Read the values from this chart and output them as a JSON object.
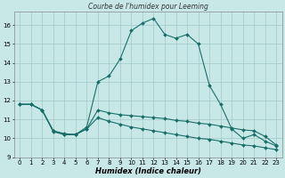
{
  "title": "Courbe de l'humidex pour Leeming",
  "xlabel": "Humidex (Indice chaleur)",
  "bg_color": "#c8e8e8",
  "grid_color": "#a0c8c8",
  "line_color": "#1a6e6a",
  "xlim": [
    -0.5,
    23.5
  ],
  "ylim": [
    9.0,
    16.7
  ],
  "yticks": [
    9,
    10,
    11,
    12,
    13,
    14,
    15,
    16
  ],
  "xticks": [
    0,
    1,
    2,
    3,
    4,
    5,
    6,
    7,
    8,
    9,
    10,
    11,
    12,
    13,
    14,
    15,
    16,
    17,
    18,
    19,
    20,
    21,
    22,
    23
  ],
  "series1_x": [
    0,
    1,
    2,
    3,
    4,
    5,
    6,
    7,
    8,
    9,
    10,
    11,
    12,
    13,
    14,
    15,
    16,
    17,
    18,
    19,
    20,
    21,
    22,
    23
  ],
  "series1_y": [
    11.8,
    11.8,
    11.5,
    10.4,
    10.2,
    10.2,
    10.6,
    13.0,
    13.3,
    14.2,
    15.7,
    16.1,
    16.35,
    15.5,
    15.3,
    15.5,
    15.0,
    12.8,
    11.8,
    10.5,
    10.0,
    10.2,
    9.85,
    9.6
  ],
  "series2_x": [
    0,
    1,
    2,
    3,
    4,
    5,
    6,
    7,
    8,
    9,
    10,
    11,
    12,
    13,
    14,
    15,
    16,
    17,
    18,
    19,
    20,
    21,
    22,
    23
  ],
  "series2_y": [
    11.8,
    11.8,
    11.5,
    10.4,
    10.25,
    10.2,
    10.5,
    11.5,
    11.35,
    11.25,
    11.2,
    11.15,
    11.1,
    11.05,
    10.95,
    10.9,
    10.8,
    10.75,
    10.65,
    10.55,
    10.45,
    10.4,
    10.1,
    9.65
  ],
  "series3_x": [
    0,
    1,
    2,
    3,
    4,
    5,
    6,
    7,
    8,
    9,
    10,
    11,
    12,
    13,
    14,
    15,
    16,
    17,
    18,
    19,
    20,
    21,
    22,
    23
  ],
  "series3_y": [
    11.8,
    11.8,
    11.5,
    10.35,
    10.2,
    10.2,
    10.5,
    11.1,
    10.9,
    10.75,
    10.6,
    10.5,
    10.4,
    10.3,
    10.2,
    10.1,
    10.0,
    9.95,
    9.85,
    9.75,
    9.65,
    9.6,
    9.5,
    9.4
  ]
}
